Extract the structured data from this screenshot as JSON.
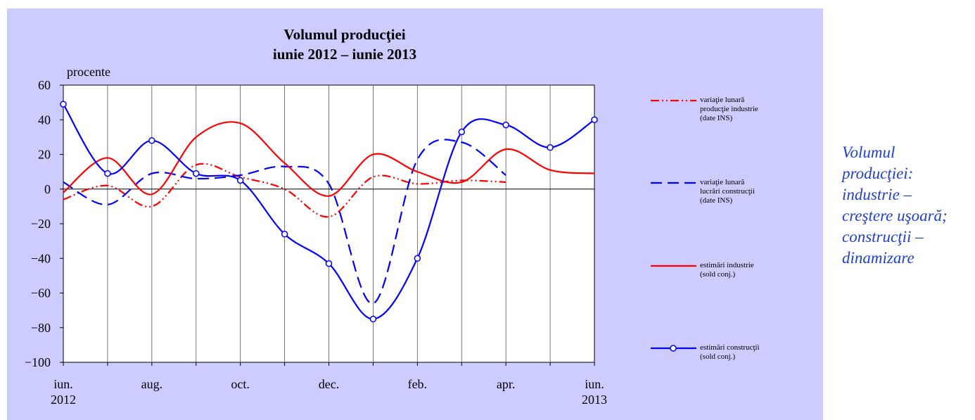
{
  "chart_data": {
    "type": "line",
    "title": "Volumul producţiei",
    "subtitle": "iunie 2012 – iunie 2013",
    "y_label": "procente",
    "categories": [
      "iun.\n2012",
      null,
      "aug.",
      null,
      "oct.",
      null,
      "dec.",
      null,
      "feb.",
      null,
      "apr.",
      null,
      "iun.\n2013"
    ],
    "ylim": [
      -100,
      60
    ],
    "yticks": [
      {
        "value": -100,
        "label": "−100"
      },
      {
        "value": -80,
        "label": "−80"
      },
      {
        "value": -60,
        "label": "−60"
      },
      {
        "value": -40,
        "label": "−40"
      },
      {
        "value": -20,
        "label": "−20"
      },
      0,
      20,
      40,
      60
    ],
    "grid": "vertical",
    "series": [
      {
        "name": "variaţie lunară\nproducţie industrie\n(date INS)",
        "color": "#ff0000",
        "style": "dashdot",
        "marker": false,
        "values": [
          -6,
          2,
          -10,
          14,
          7,
          0,
          -16,
          7,
          3,
          5,
          4,
          null,
          null
        ]
      },
      {
        "name": "variaţie lunară\nlucrări construcţii\n(date INS)",
        "color": "#0000ff",
        "style": "dashed",
        "marker": false,
        "values": [
          4,
          -9,
          9,
          6,
          8,
          13,
          3,
          -66,
          17,
          27,
          8,
          null,
          null
        ]
      },
      {
        "name": "estimări industrie\n(sold conj.)",
        "color": "#ff0000",
        "style": "solid",
        "marker": false,
        "values": [
          -2,
          18,
          -3,
          30,
          38,
          15,
          -4,
          20,
          10,
          4,
          23,
          11,
          9
        ]
      },
      {
        "name": "estimări construcţii\n(sold conj.)",
        "color": "#0000ff",
        "style": "solid",
        "marker": true,
        "values": [
          49,
          9,
          28,
          9,
          5,
          -26,
          -43,
          -75,
          -40,
          33,
          37,
          24,
          40
        ]
      }
    ]
  },
  "sidebar": [
    "Volumul",
    "producţiei:",
    "industrie –",
    "creştere uşoară;",
    "construcţii –",
    "dinamizare"
  ]
}
